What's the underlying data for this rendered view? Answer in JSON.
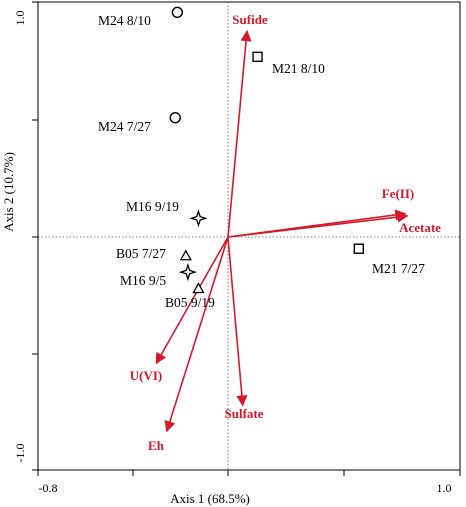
{
  "chart_data": {
    "type": "scatter",
    "subtype": "ordination-biplot",
    "xlabel": "Axis 1 (68.5%)",
    "ylabel": "Axis 2 (10.7%)",
    "xlim": [
      -0.8,
      1.0
    ],
    "ylim": [
      -1.0,
      1.0
    ],
    "x_tick_labels": [
      "-0.8",
      "1.0"
    ],
    "y_tick_labels": [
      "1.0",
      "-1.0"
    ],
    "grid": false,
    "reference_lines": "dotted lines at x=0 and y=0",
    "vector_color": "#d7192b",
    "site_color": "#000000",
    "sites": [
      {
        "label": "M24 8/10",
        "x": -0.24,
        "y": 0.96,
        "marker": "circle"
      },
      {
        "label": "M24 7/27",
        "x": -0.25,
        "y": 0.51,
        "marker": "circle"
      },
      {
        "label": "M21 8/10",
        "x": 0.14,
        "y": 0.77,
        "marker": "square"
      },
      {
        "label": "M21 7/27",
        "x": 0.62,
        "y": -0.05,
        "marker": "square"
      },
      {
        "label": "M16 9/19",
        "x": -0.14,
        "y": 0.08,
        "marker": "star"
      },
      {
        "label": "M16 9/5",
        "x": -0.19,
        "y": -0.15,
        "marker": "star"
      },
      {
        "label": "B05 7/27",
        "x": -0.2,
        "y": -0.08,
        "marker": "triangle"
      },
      {
        "label": "B05 9/19",
        "x": -0.14,
        "y": -0.22,
        "marker": "triangle"
      }
    ],
    "vectors": [
      {
        "label": "Sufide",
        "x": 0.09,
        "y": 0.88
      },
      {
        "label": "Fe(II)",
        "x": 0.84,
        "y": 0.1
      },
      {
        "label": "Acetate",
        "x": 0.85,
        "y": 0.09
      },
      {
        "label": "U(VI)",
        "x": -0.34,
        "y": -0.54
      },
      {
        "label": "Sulfate",
        "x": 0.07,
        "y": -0.72
      },
      {
        "label": "Eh",
        "x": -0.29,
        "y": -0.83
      }
    ]
  }
}
